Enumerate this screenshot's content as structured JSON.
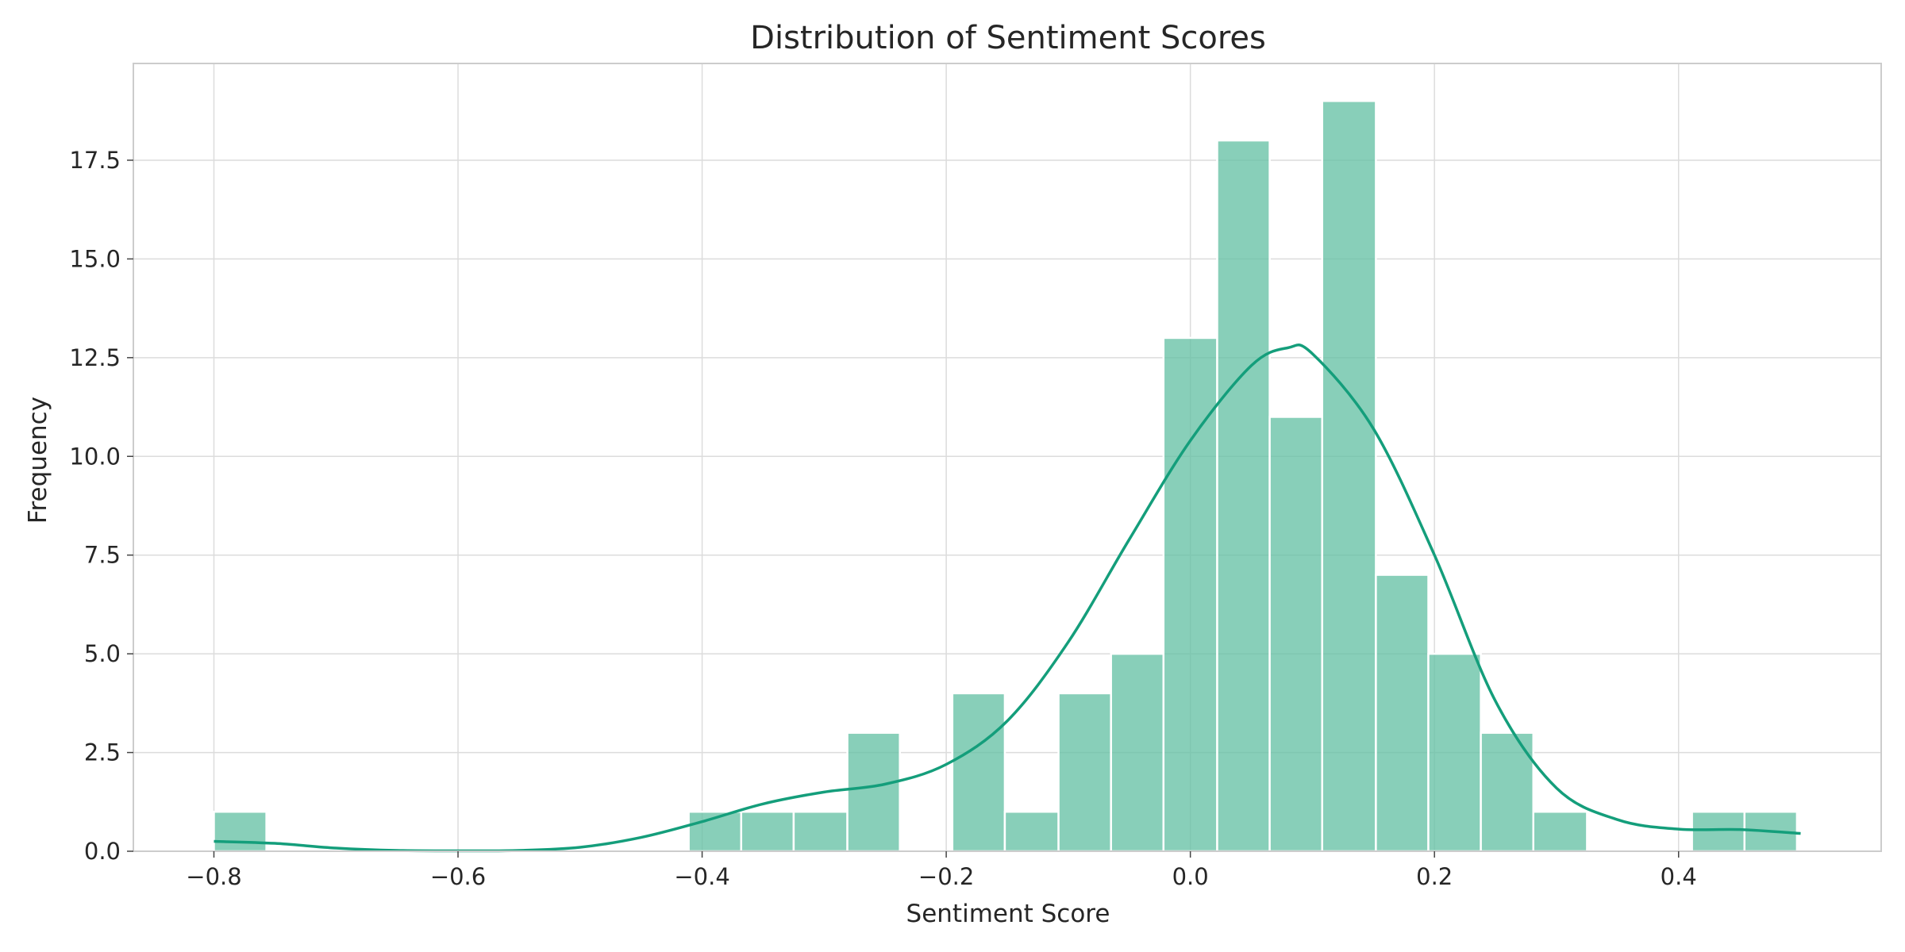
{
  "chart_data": {
    "type": "bar",
    "title": "Distribution of Sentiment Scores",
    "xlabel": "Sentiment Score",
    "ylabel": "Frequency",
    "xlim": [
      -0.866,
      0.566
    ],
    "ylim": [
      0,
      19.95
    ],
    "grid": true,
    "bar_color": "#66c2a5",
    "kde_color": "#149e7b",
    "x_ticks": [
      {
        "value": -0.8,
        "label": "−0.8"
      },
      {
        "value": -0.6,
        "label": "−0.6"
      },
      {
        "value": -0.4,
        "label": "−0.4"
      },
      {
        "value": -0.2,
        "label": "−0.2"
      },
      {
        "value": 0.0,
        "label": "0.0"
      },
      {
        "value": 0.2,
        "label": "0.2"
      },
      {
        "value": 0.4,
        "label": "0.4"
      }
    ],
    "y_ticks": [
      {
        "value": 0,
        "label": "0.0"
      },
      {
        "value": 2.5,
        "label": "2.5"
      },
      {
        "value": 5,
        "label": "5.0"
      },
      {
        "value": 7.5,
        "label": "7.5"
      },
      {
        "value": 10,
        "label": "10.0"
      },
      {
        "value": 12.5,
        "label": "12.5"
      },
      {
        "value": 15,
        "label": "15.0"
      },
      {
        "value": 17.5,
        "label": "17.5"
      }
    ],
    "bins": [
      {
        "start": -0.8,
        "end": -0.757,
        "count": 1
      },
      {
        "start": -0.411,
        "end": -0.368,
        "count": 1
      },
      {
        "start": -0.368,
        "end": -0.325,
        "count": 1
      },
      {
        "start": -0.325,
        "end": -0.281,
        "count": 1
      },
      {
        "start": -0.281,
        "end": -0.238,
        "count": 3
      },
      {
        "start": -0.195,
        "end": -0.152,
        "count": 4
      },
      {
        "start": -0.152,
        "end": -0.108,
        "count": 1
      },
      {
        "start": -0.108,
        "end": -0.065,
        "count": 4
      },
      {
        "start": -0.065,
        "end": -0.022,
        "count": 5
      },
      {
        "start": -0.022,
        "end": 0.022,
        "count": 13
      },
      {
        "start": 0.022,
        "end": 0.065,
        "count": 18
      },
      {
        "start": 0.065,
        "end": 0.108,
        "count": 11
      },
      {
        "start": 0.108,
        "end": 0.152,
        "count": 19
      },
      {
        "start": 0.152,
        "end": 0.195,
        "count": 7
      },
      {
        "start": 0.195,
        "end": 0.238,
        "count": 5
      },
      {
        "start": 0.238,
        "end": 0.281,
        "count": 3
      },
      {
        "start": 0.281,
        "end": 0.325,
        "count": 1
      },
      {
        "start": 0.411,
        "end": 0.454,
        "count": 1
      },
      {
        "start": 0.454,
        "end": 0.497,
        "count": 1
      }
    ],
    "kde": {
      "x": [
        -0.8,
        -0.75,
        -0.7,
        -0.65,
        -0.6,
        -0.55,
        -0.5,
        -0.45,
        -0.4,
        -0.35,
        -0.3,
        -0.25,
        -0.2,
        -0.15,
        -0.1,
        -0.05,
        0.0,
        0.05,
        0.08,
        0.1,
        0.15,
        0.2,
        0.25,
        0.3,
        0.35,
        0.4,
        0.45,
        0.5
      ],
      "y": [
        0.25,
        0.2,
        0.08,
        0.02,
        0.01,
        0.02,
        0.1,
        0.35,
        0.75,
        1.2,
        1.5,
        1.7,
        2.2,
        3.3,
        5.3,
        7.9,
        10.4,
        12.3,
        12.75,
        12.6,
        10.7,
        7.5,
        3.8,
        1.6,
        0.8,
        0.56,
        0.55,
        0.45
      ]
    }
  }
}
